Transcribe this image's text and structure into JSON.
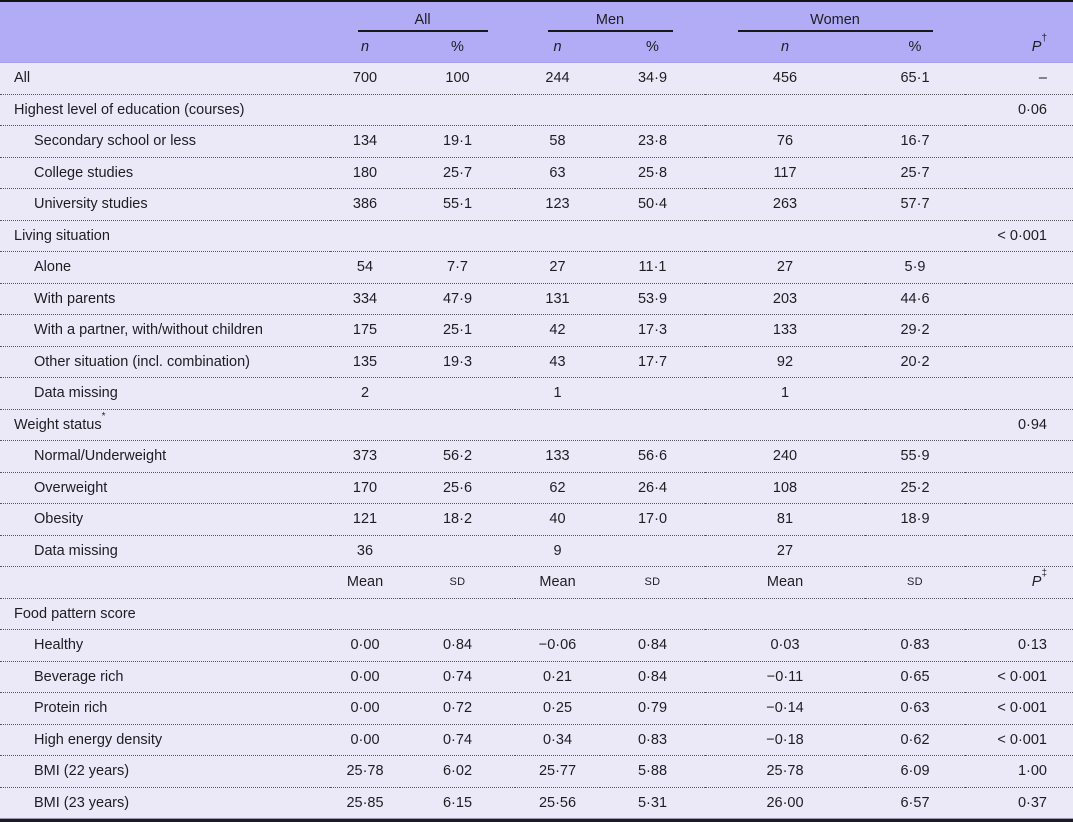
{
  "table": {
    "column_groups": [
      {
        "label": "All"
      },
      {
        "label": "Men"
      },
      {
        "label": "Women"
      }
    ],
    "subheader": {
      "n1": "n",
      "pct1": "%",
      "n2": "n",
      "pct2": "%",
      "n3": "n",
      "pct3": "%",
      "p_base": "P",
      "p_sup": "†"
    },
    "rows": [
      {
        "type": "data",
        "label": "All",
        "indent": 0,
        "cells": [
          "700",
          "100",
          "244",
          "34·9",
          "456",
          "65·1",
          "–"
        ]
      },
      {
        "type": "data",
        "label": "Highest level of education (courses)",
        "indent": 0,
        "cells": [
          "",
          "",
          "",
          "",
          "",
          "",
          "0·06"
        ]
      },
      {
        "type": "data",
        "label": "Secondary school or less",
        "indent": 1,
        "cells": [
          "134",
          "19·1",
          "58",
          "23·8",
          "76",
          "16·7",
          ""
        ]
      },
      {
        "type": "data",
        "label": "College studies",
        "indent": 1,
        "cells": [
          "180",
          "25·7",
          "63",
          "25·8",
          "117",
          "25·7",
          ""
        ]
      },
      {
        "type": "data",
        "label": "University studies",
        "indent": 1,
        "cells": [
          "386",
          "55·1",
          "123",
          "50·4",
          "263",
          "57·7",
          ""
        ]
      },
      {
        "type": "data",
        "label": "Living situation",
        "indent": 0,
        "cells": [
          "",
          "",
          "",
          "",
          "",
          "",
          "< 0·001"
        ]
      },
      {
        "type": "data",
        "label": "Alone",
        "indent": 1,
        "cells": [
          "54",
          "7·7",
          "27",
          "11·1",
          "27",
          "5·9",
          ""
        ]
      },
      {
        "type": "data",
        "label": "With parents",
        "indent": 1,
        "cells": [
          "334",
          "47·9",
          "131",
          "53·9",
          "203",
          "44·6",
          ""
        ]
      },
      {
        "type": "data",
        "label": "With a partner, with/without children",
        "indent": 1,
        "cells": [
          "175",
          "25·1",
          "42",
          "17·3",
          "133",
          "29·2",
          ""
        ]
      },
      {
        "type": "data",
        "label": "Other situation (incl. combination)",
        "indent": 1,
        "cells": [
          "135",
          "19·3",
          "43",
          "17·7",
          "92",
          "20·2",
          ""
        ]
      },
      {
        "type": "data",
        "label": "Data missing",
        "indent": 1,
        "cells": [
          "2",
          "",
          "1",
          "",
          "1",
          "",
          ""
        ]
      },
      {
        "type": "data",
        "label": "Weight status",
        "label_sup": "*",
        "indent": 0,
        "cells": [
          "",
          "",
          "",
          "",
          "",
          "",
          "0·94"
        ]
      },
      {
        "type": "data",
        "label": "Normal/Underweight",
        "indent": 1,
        "cells": [
          "373",
          "56·2",
          "133",
          "56·6",
          "240",
          "55·9",
          ""
        ]
      },
      {
        "type": "data",
        "label": "Overweight",
        "indent": 1,
        "cells": [
          "170",
          "25·6",
          "62",
          "26·4",
          "108",
          "25·2",
          ""
        ]
      },
      {
        "type": "data",
        "label": "Obesity",
        "indent": 1,
        "cells": [
          "121",
          "18·2",
          "40",
          "17·0",
          "81",
          "18·9",
          ""
        ]
      },
      {
        "type": "data",
        "label": "Data missing",
        "indent": 1,
        "cells": [
          "36",
          "",
          "9",
          "",
          "27",
          "",
          ""
        ]
      },
      {
        "type": "measures",
        "label": "",
        "cells": [
          "Mean",
          "SD",
          "Mean",
          "SD",
          "Mean",
          "SD"
        ],
        "p_base": "P",
        "p_sup": "‡"
      },
      {
        "type": "data",
        "label": "Food pattern score",
        "indent": 0,
        "cells": [
          "",
          "",
          "",
          "",
          "",
          "",
          ""
        ]
      },
      {
        "type": "data",
        "label": "Healthy",
        "indent": 1,
        "cells": [
          "0·00",
          "0·84",
          "−0·06",
          "0·84",
          "0·03",
          "0·83",
          "0·13"
        ]
      },
      {
        "type": "data",
        "label": "Beverage rich",
        "indent": 1,
        "cells": [
          "0·00",
          "0·74",
          "0·21",
          "0·84",
          "−0·11",
          "0·65",
          "< 0·001"
        ]
      },
      {
        "type": "data",
        "label": "Protein rich",
        "indent": 1,
        "cells": [
          "0·00",
          "0·72",
          "0·25",
          "0·79",
          "−0·14",
          "0·63",
          "< 0·001"
        ]
      },
      {
        "type": "data",
        "label": "High energy density",
        "indent": 1,
        "cells": [
          "0·00",
          "0·74",
          "0·34",
          "0·83",
          "−0·18",
          "0·62",
          "< 0·001"
        ]
      },
      {
        "type": "data",
        "label": "BMI (22 years)",
        "indent": 1,
        "cells": [
          "25·78",
          "6·02",
          "25·77",
          "5·88",
          "25·78",
          "6·09",
          "1·00"
        ]
      },
      {
        "type": "data",
        "label": "BMI (23 years)",
        "indent": 1,
        "cells": [
          "25·85",
          "6·15",
          "25·56",
          "5·31",
          "26·00",
          "6·57",
          "0·37"
        ]
      }
    ]
  },
  "colors": {
    "header_bg": "#b2abf6",
    "body_bg": "#ebe9f8",
    "rule_dark": "#17171c"
  }
}
